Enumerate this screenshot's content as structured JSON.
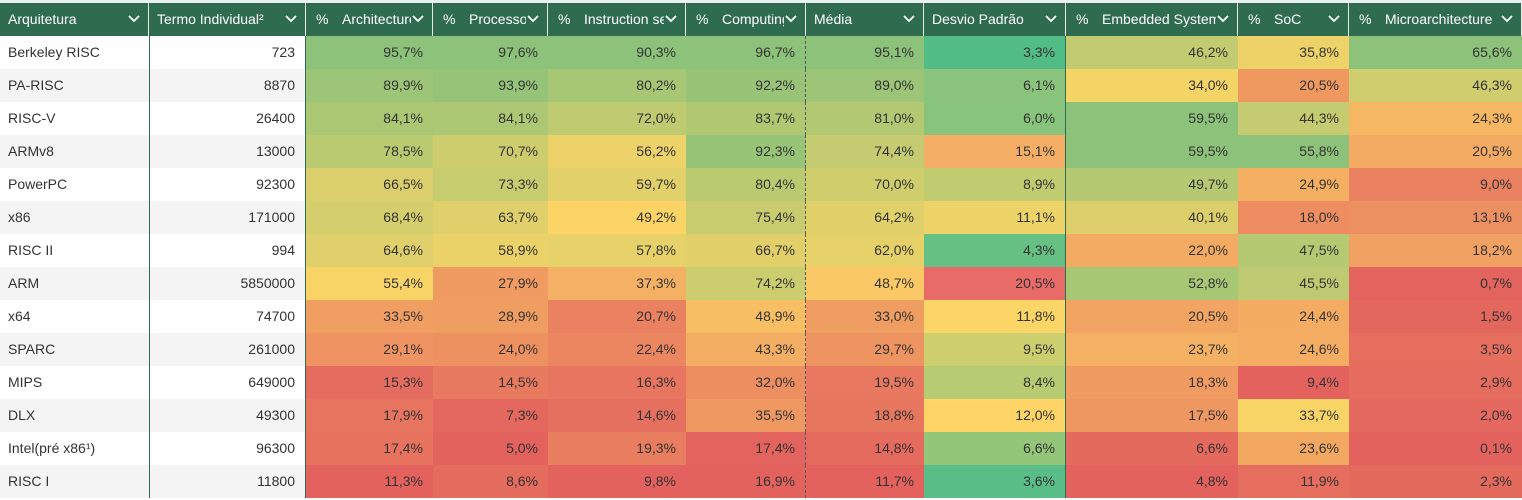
{
  "columns": [
    {
      "key": "arch",
      "label": "Arquitetura",
      "pct": false
    },
    {
      "key": "termo",
      "label": "Termo Individual²",
      "pct": false
    },
    {
      "key": "architecture",
      "label": "Architecture",
      "pct": true
    },
    {
      "key": "processor",
      "label": "Processor",
      "pct": true
    },
    {
      "key": "instruction",
      "label": "Instruction set",
      "pct": true
    },
    {
      "key": "computing",
      "label": "Computing",
      "pct": true
    },
    {
      "key": "media",
      "label": "Média",
      "pct": false
    },
    {
      "key": "desvio",
      "label": "Desvio Padrão",
      "pct": false
    },
    {
      "key": "embedded",
      "label": "Embedded System",
      "pct": true
    },
    {
      "key": "soc",
      "label": "SoC",
      "pct": true
    },
    {
      "key": "micro",
      "label": "Microarchitecture",
      "pct": true
    }
  ],
  "pct_symbol": "%",
  "rows": [
    {
      "arch": "Berkeley RISC",
      "termo": "723",
      "architecture": "95,7%",
      "processor": "97,6%",
      "instruction": "90,3%",
      "computing": "96,7%",
      "media": "95,1%",
      "desvio": "3,3%",
      "embedded": "46,2%",
      "soc": "35,8%",
      "micro": "65,6%"
    },
    {
      "arch": "PA-RISC",
      "termo": "8870",
      "architecture": "89,9%",
      "processor": "93,9%",
      "instruction": "80,2%",
      "computing": "92,2%",
      "media": "89,0%",
      "desvio": "6,1%",
      "embedded": "34,0%",
      "soc": "20,5%",
      "micro": "46,3%"
    },
    {
      "arch": "RISC-V",
      "termo": "26400",
      "architecture": "84,1%",
      "processor": "84,1%",
      "instruction": "72,0%",
      "computing": "83,7%",
      "media": "81,0%",
      "desvio": "6,0%",
      "embedded": "59,5%",
      "soc": "44,3%",
      "micro": "24,3%"
    },
    {
      "arch": "ARMv8",
      "termo": "13000",
      "architecture": "78,5%",
      "processor": "70,7%",
      "instruction": "56,2%",
      "computing": "92,3%",
      "media": "74,4%",
      "desvio": "15,1%",
      "embedded": "59,5%",
      "soc": "55,8%",
      "micro": "20,5%"
    },
    {
      "arch": "PowerPC",
      "termo": "92300",
      "architecture": "66,5%",
      "processor": "73,3%",
      "instruction": "59,7%",
      "computing": "80,4%",
      "media": "70,0%",
      "desvio": "8,9%",
      "embedded": "49,7%",
      "soc": "24,9%",
      "micro": "9,0%"
    },
    {
      "arch": "x86",
      "termo": "171000",
      "architecture": "68,4%",
      "processor": "63,7%",
      "instruction": "49,2%",
      "computing": "75,4%",
      "media": "64,2%",
      "desvio": "11,1%",
      "embedded": "40,1%",
      "soc": "18,0%",
      "micro": "13,1%"
    },
    {
      "arch": "RISC II",
      "termo": "994",
      "architecture": "64,6%",
      "processor": "58,9%",
      "instruction": "57,8%",
      "computing": "66,7%",
      "media": "62,0%",
      "desvio": "4,3%",
      "embedded": "22,0%",
      "soc": "47,5%",
      "micro": "18,2%"
    },
    {
      "arch": "ARM",
      "termo": "5850000",
      "architecture": "55,4%",
      "processor": "27,9%",
      "instruction": "37,3%",
      "computing": "74,2%",
      "media": "48,7%",
      "desvio": "20,5%",
      "embedded": "52,8%",
      "soc": "45,5%",
      "micro": "0,7%"
    },
    {
      "arch": "x64",
      "termo": "74700",
      "architecture": "33,5%",
      "processor": "28,9%",
      "instruction": "20,7%",
      "computing": "48,9%",
      "media": "33,0%",
      "desvio": "11,8%",
      "embedded": "20,5%",
      "soc": "24,4%",
      "micro": "1,5%"
    },
    {
      "arch": "SPARC",
      "termo": "261000",
      "architecture": "29,1%",
      "processor": "24,0%",
      "instruction": "22,4%",
      "computing": "43,3%",
      "media": "29,7%",
      "desvio": "9,5%",
      "embedded": "23,7%",
      "soc": "24,6%",
      "micro": "3,5%"
    },
    {
      "arch": "MIPS",
      "termo": "649000",
      "architecture": "15,3%",
      "processor": "14,5%",
      "instruction": "16,3%",
      "computing": "32,0%",
      "media": "19,5%",
      "desvio": "8,4%",
      "embedded": "18,3%",
      "soc": "9,4%",
      "micro": "2,9%"
    },
    {
      "arch": "DLX",
      "termo": "49300",
      "architecture": "17,9%",
      "processor": "7,3%",
      "instruction": "14,6%",
      "computing": "35,5%",
      "media": "18,8%",
      "desvio": "12,0%",
      "embedded": "17,5%",
      "soc": "33,7%",
      "micro": "2,0%"
    },
    {
      "arch": "Intel(pré x86¹)",
      "termo": "96300",
      "architecture": "17,4%",
      "processor": "5,0%",
      "instruction": "19,3%",
      "computing": "17,4%",
      "media": "14,8%",
      "desvio": "6,6%",
      "embedded": "6,6%",
      "soc": "23,6%",
      "micro": "0,1%"
    },
    {
      "arch": "RISC I",
      "termo": "11800",
      "architecture": "11,3%",
      "processor": "8,6%",
      "instruction": "9,8%",
      "computing": "16,9%",
      "media": "11,7%",
      "desvio": "3,6%",
      "embedded": "4,8%",
      "soc": "11,9%",
      "micro": "2,3%"
    }
  ],
  "colors": {
    "header_bg": "#2e6b4f",
    "header_text": "#ffffff",
    "scale_high": "#8cc27a",
    "scale_mid": "#fdd565",
    "scale_low": "#e3625e",
    "desvio_low": "#52bc87",
    "desvio_high": "#e86b68"
  }
}
